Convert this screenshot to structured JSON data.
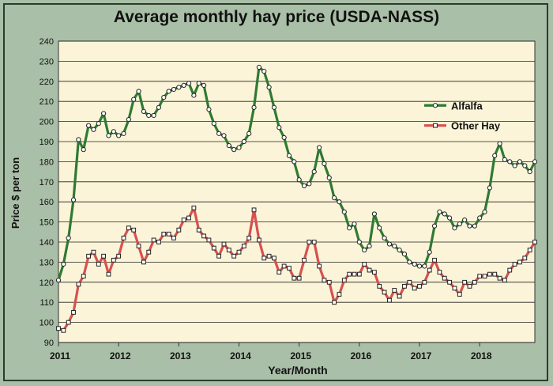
{
  "colors": {
    "plot_bg": "#fbf4d8",
    "grid": "#222222",
    "alfalfa": "#2f7a33",
    "other_hay": "#d8504f",
    "frame_bg": "#a9bfa7"
  },
  "chart_data": {
    "type": "line",
    "title": "Average monthly hay price (USDA-NASS)",
    "xlabel": "Year/Month",
    "ylabel": "Price $ per ton",
    "ylim": [
      90,
      240
    ],
    "yticks": [
      90,
      100,
      110,
      120,
      130,
      140,
      150,
      160,
      170,
      180,
      190,
      200,
      210,
      220,
      230,
      240
    ],
    "xtick_labels": [
      "2011",
      "2012",
      "2013",
      "2014",
      "2015",
      "2016",
      "2017",
      "2018"
    ],
    "grid": true,
    "legend_position": "right",
    "series": [
      {
        "name": "Alfalfa",
        "color": "#2f7a33",
        "values": [
          121,
          129,
          142,
          161,
          191,
          186,
          198,
          196,
          199,
          204,
          193,
          195,
          193,
          194,
          201,
          211,
          215,
          205,
          203,
          203,
          207,
          212,
          215,
          216,
          217,
          218,
          219,
          213,
          219,
          218,
          206,
          199,
          194,
          193,
          188,
          186,
          187,
          190,
          194,
          207,
          227,
          225,
          217,
          207,
          197,
          192,
          183,
          180,
          171,
          168,
          169,
          175,
          187,
          179,
          172,
          162,
          160,
          155,
          147,
          149,
          140,
          136,
          138,
          154,
          147,
          142,
          139,
          138,
          136,
          134,
          130,
          129,
          128,
          128,
          135,
          148,
          155,
          154,
          152,
          147,
          149,
          151,
          148,
          148,
          152,
          155,
          167,
          183,
          189,
          181,
          180,
          178,
          180,
          178,
          175,
          180
        ]
      },
      {
        "name": "Other Hay",
        "color": "#d8504f",
        "values": [
          97,
          96,
          100,
          105,
          119,
          123,
          133,
          135,
          129,
          133,
          124,
          131,
          133,
          142,
          147,
          146,
          138,
          130,
          135,
          141,
          140,
          144,
          144,
          142,
          146,
          151,
          152,
          157,
          146,
          143,
          141,
          137,
          133,
          139,
          136,
          133,
          135,
          138,
          142,
          156,
          141,
          132,
          133,
          132,
          125,
          128,
          127,
          122,
          122,
          131,
          140,
          140,
          128,
          121,
          120,
          110,
          114,
          121,
          124,
          124,
          124,
          129,
          126,
          125,
          118,
          115,
          111,
          116,
          113,
          118,
          120,
          117,
          118,
          120,
          126,
          131,
          125,
          122,
          120,
          117,
          114,
          120,
          118,
          120,
          123,
          123,
          124,
          124,
          122,
          121,
          126,
          129,
          130,
          132,
          136,
          140
        ]
      }
    ]
  }
}
